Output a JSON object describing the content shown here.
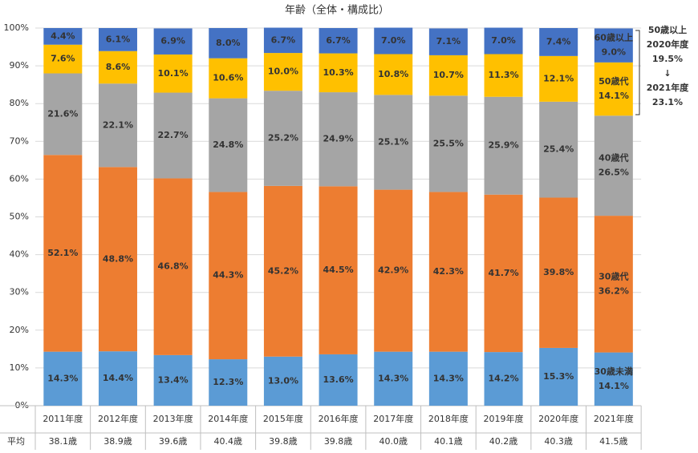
{
  "chart_data": {
    "type": "stacked_bar",
    "title": "年齢（全体・構成比）",
    "categories": [
      "2011年度",
      "2012年度",
      "2013年度",
      "2014年度",
      "2015年度",
      "2016年度",
      "2017年度",
      "2018年度",
      "2019年度",
      "2020年度",
      "2021年度"
    ],
    "series": [
      {
        "name": "30歳未満",
        "color": "#5b9bd5",
        "values": [
          14.3,
          14.4,
          13.4,
          12.3,
          13.0,
          13.6,
          14.3,
          14.3,
          14.2,
          15.3,
          14.1
        ],
        "value_labels": [
          "14.3%",
          "14.4%",
          "13.4%",
          "12.3%",
          "13.0%",
          "13.6%",
          "14.3%",
          "14.3%",
          "14.2%",
          "15.3%",
          "14.1%"
        ]
      },
      {
        "name": "30歳代",
        "color": "#ed7d31",
        "values": [
          52.1,
          48.8,
          46.8,
          44.3,
          45.2,
          44.5,
          42.9,
          42.3,
          41.7,
          39.8,
          36.2
        ],
        "value_labels": [
          "52.1%",
          "48.8%",
          "46.8%",
          "44.3%",
          "45.2%",
          "44.5%",
          "42.9%",
          "42.3%",
          "41.7%",
          "39.8%",
          "36.2%"
        ]
      },
      {
        "name": "40歳代",
        "color": "#a5a5a5",
        "values": [
          21.6,
          22.1,
          22.7,
          24.8,
          25.2,
          24.9,
          25.1,
          25.5,
          25.9,
          25.4,
          26.5
        ],
        "value_labels": [
          "21.6%",
          "22.1%",
          "22.7%",
          "24.8%",
          "25.2%",
          "24.9%",
          "25.1%",
          "25.5%",
          "25.9%",
          "25.4%",
          "26.5%"
        ]
      },
      {
        "name": "50歳代",
        "color": "#ffc000",
        "values": [
          7.6,
          8.6,
          10.1,
          10.6,
          10.0,
          10.3,
          10.8,
          10.7,
          11.3,
          12.1,
          14.1
        ],
        "value_labels": [
          "7.6%",
          "8.6%",
          "10.1%",
          "10.6%",
          "10.0%",
          "10.3%",
          "10.8%",
          "10.7%",
          "11.3%",
          "12.1%",
          "14.1%"
        ]
      },
      {
        "name": "60歳以上",
        "color": "#4472c4",
        "values": [
          4.4,
          6.1,
          6.9,
          8.0,
          6.7,
          6.7,
          7.0,
          7.1,
          7.0,
          7.4,
          9.0
        ],
        "value_labels": [
          "4.4%",
          "6.1%",
          "6.9%",
          "8.0%",
          "6.7%",
          "6.7%",
          "7.0%",
          "7.1%",
          "7.0%",
          "7.4%",
          "9.0%"
        ]
      }
    ],
    "ylim": [
      0,
      100
    ],
    "yticks": [
      {
        "value": 0,
        "label": "0%"
      },
      {
        "value": 10,
        "label": "10%"
      },
      {
        "value": 20,
        "label": "20%"
      },
      {
        "value": 30,
        "label": "30%"
      },
      {
        "value": 40,
        "label": "40%"
      },
      {
        "value": 50,
        "label": "50%"
      },
      {
        "value": 60,
        "label": "60%"
      },
      {
        "value": 70,
        "label": "70%"
      },
      {
        "value": 80,
        "label": "80%"
      },
      {
        "value": 90,
        "label": "90%"
      },
      {
        "value": 100,
        "label": "100%"
      }
    ],
    "grid": true,
    "average_label": "平均",
    "averages": [
      "38.1歳",
      "38.9歳",
      "39.6歳",
      "40.4歳",
      "39.8歳",
      "39.8歳",
      "40.0歳",
      "40.1歳",
      "40.2歳",
      "40.3歳",
      "41.5歳"
    ],
    "annotation": [
      "50歳以上",
      "2020年度",
      "19.5%",
      "↓",
      "2021年度",
      "23.1%"
    ]
  }
}
